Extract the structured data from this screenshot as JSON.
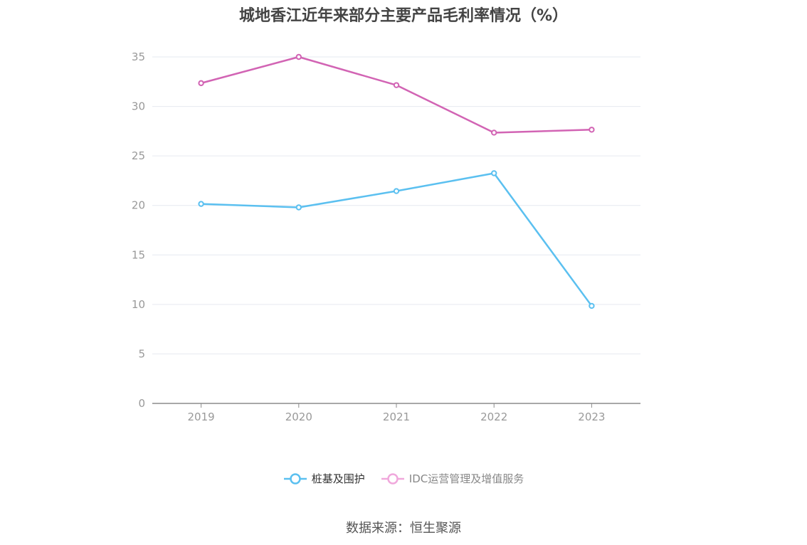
{
  "title": "城地香江近年来部分主要产品毛利率情况（%）",
  "source": "数据来源：恒生聚源",
  "chart_data": {
    "type": "line",
    "title": "城地香江近年来部分主要产品毛利率情况（%）",
    "xlabel": "",
    "ylabel": "",
    "categories": [
      "2019",
      "2020",
      "2021",
      "2022",
      "2023"
    ],
    "ylim": [
      0,
      35
    ],
    "yticks": [
      0,
      5,
      10,
      15,
      20,
      25,
      30,
      35
    ],
    "grid": true,
    "legend_position": "bottom-center",
    "series": [
      {
        "name": "桩基及围护",
        "color": "#5bc0f0",
        "values": [
          20.15,
          19.8,
          21.45,
          23.25,
          9.85
        ]
      },
      {
        "name": "IDC运营管理及增值服务",
        "color": "#d264b4",
        "values": [
          32.35,
          35.0,
          32.15,
          27.35,
          27.65
        ]
      }
    ]
  },
  "legend": {
    "items": [
      {
        "label": "桩基及围护",
        "color": "#5bc0f0"
      },
      {
        "label": "IDC运营管理及增值服务",
        "color": "#f0a8dc"
      }
    ]
  }
}
